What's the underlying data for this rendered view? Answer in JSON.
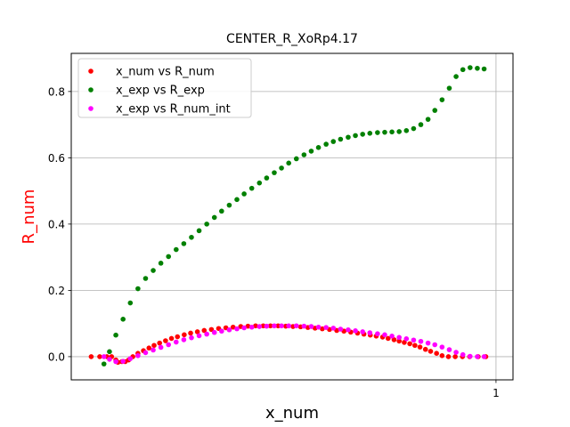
{
  "chart_data": {
    "type": "scatter",
    "title": "CENTER_R_XoRp4.17",
    "xlabel": "x_num",
    "ylabel": "R_num",
    "ylabel_color": "#ff0000",
    "grid": true,
    "legend_position": "top-left",
    "xlim": [
      0.0,
      1.04
    ],
    "ylim": [
      -0.07,
      0.915
    ],
    "xticks": [
      {
        "value": 1.0,
        "label": "1"
      }
    ],
    "yticks": [
      {
        "value": 0.0,
        "label": "0.0"
      },
      {
        "value": 0.2,
        "label": "0.2"
      },
      {
        "value": 0.4,
        "label": "0.4"
      },
      {
        "value": 0.6,
        "label": "0.6"
      },
      {
        "value": 0.8,
        "label": "0.8"
      }
    ],
    "series": [
      {
        "name": "x_num vs R_num",
        "color": "#ff0000",
        "x": [
          0.047,
          0.067,
          0.084,
          0.095,
          0.105,
          0.11,
          0.119,
          0.127,
          0.135,
          0.145,
          0.157,
          0.17,
          0.183,
          0.195,
          0.208,
          0.222,
          0.236,
          0.25,
          0.266,
          0.281,
          0.297,
          0.313,
          0.33,
          0.347,
          0.364,
          0.381,
          0.399,
          0.416,
          0.434,
          0.452,
          0.469,
          0.487,
          0.505,
          0.522,
          0.54,
          0.557,
          0.574,
          0.591,
          0.608,
          0.625,
          0.642,
          0.658,
          0.674,
          0.689,
          0.704,
          0.718,
          0.733,
          0.746,
          0.76,
          0.772,
          0.784,
          0.797,
          0.809,
          0.821,
          0.834,
          0.846,
          0.86,
          0.873,
          0.888,
          0.904,
          0.921,
          0.938,
          0.958,
          0.976
        ],
        "y": [
          0.0,
          0.0,
          0.0,
          0.0,
          -0.01,
          -0.017,
          -0.015,
          -0.015,
          -0.01,
          0.0,
          0.01,
          0.018,
          0.026,
          0.034,
          0.041,
          0.048,
          0.055,
          0.06,
          0.066,
          0.071,
          0.075,
          0.079,
          0.082,
          0.085,
          0.087,
          0.089,
          0.091,
          0.092,
          0.093,
          0.093,
          0.093,
          0.093,
          0.092,
          0.091,
          0.09,
          0.088,
          0.086,
          0.084,
          0.082,
          0.079,
          0.077,
          0.074,
          0.071,
          0.068,
          0.065,
          0.062,
          0.059,
          0.055,
          0.051,
          0.047,
          0.043,
          0.039,
          0.034,
          0.029,
          0.022,
          0.016,
          0.01,
          0.003,
          0.0,
          0.0,
          0.0,
          0.0,
          0.0,
          0.0
        ]
      },
      {
        "name": "x_exp vs R_exp",
        "color": "#008000",
        "x": [
          0.077,
          0.09,
          0.105,
          0.122,
          0.139,
          0.157,
          0.175,
          0.193,
          0.211,
          0.229,
          0.247,
          0.265,
          0.283,
          0.301,
          0.319,
          0.337,
          0.354,
          0.372,
          0.39,
          0.407,
          0.425,
          0.443,
          0.46,
          0.478,
          0.495,
          0.512,
          0.53,
          0.548,
          0.565,
          0.582,
          0.6,
          0.617,
          0.634,
          0.652,
          0.669,
          0.686,
          0.703,
          0.721,
          0.738,
          0.755,
          0.772,
          0.789,
          0.806,
          0.823,
          0.84,
          0.856,
          0.873,
          0.89,
          0.906,
          0.922,
          0.939,
          0.956,
          0.972
        ],
        "y": [
          -0.022,
          0.015,
          0.065,
          0.113,
          0.162,
          0.205,
          0.236,
          0.26,
          0.282,
          0.302,
          0.323,
          0.341,
          0.36,
          0.38,
          0.4,
          0.42,
          0.439,
          0.457,
          0.474,
          0.491,
          0.508,
          0.524,
          0.539,
          0.555,
          0.569,
          0.584,
          0.597,
          0.609,
          0.62,
          0.631,
          0.641,
          0.649,
          0.656,
          0.662,
          0.667,
          0.671,
          0.674,
          0.676,
          0.677,
          0.678,
          0.679,
          0.682,
          0.688,
          0.7,
          0.716,
          0.743,
          0.775,
          0.81,
          0.845,
          0.866,
          0.872,
          0.87,
          0.868
        ]
      },
      {
        "name": "x_exp vs R_num_int",
        "color": "#ff00ff",
        "x": [
          0.077,
          0.09,
          0.105,
          0.122,
          0.139,
          0.157,
          0.175,
          0.193,
          0.211,
          0.229,
          0.247,
          0.265,
          0.283,
          0.301,
          0.319,
          0.337,
          0.354,
          0.372,
          0.39,
          0.407,
          0.425,
          0.443,
          0.46,
          0.478,
          0.495,
          0.512,
          0.53,
          0.548,
          0.565,
          0.582,
          0.6,
          0.617,
          0.634,
          0.652,
          0.669,
          0.686,
          0.703,
          0.721,
          0.738,
          0.755,
          0.772,
          0.789,
          0.806,
          0.823,
          0.84,
          0.856,
          0.873,
          0.89,
          0.906,
          0.922,
          0.939,
          0.956,
          0.972
        ],
        "y": [
          0.0,
          -0.008,
          -0.015,
          -0.014,
          -0.006,
          0.003,
          0.012,
          0.02,
          0.028,
          0.036,
          0.044,
          0.051,
          0.057,
          0.063,
          0.068,
          0.073,
          0.077,
          0.081,
          0.084,
          0.087,
          0.089,
          0.091,
          0.092,
          0.093,
          0.093,
          0.093,
          0.093,
          0.092,
          0.091,
          0.089,
          0.088,
          0.086,
          0.083,
          0.081,
          0.078,
          0.075,
          0.072,
          0.069,
          0.066,
          0.062,
          0.058,
          0.054,
          0.05,
          0.046,
          0.041,
          0.036,
          0.029,
          0.021,
          0.013,
          0.006,
          0.001,
          0.0,
          0.0
        ]
      }
    ]
  }
}
